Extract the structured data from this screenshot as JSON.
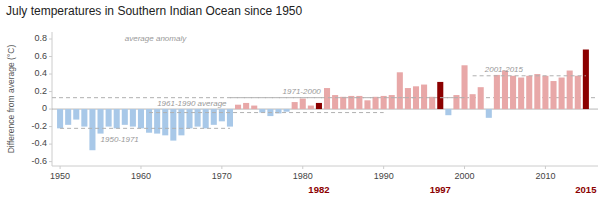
{
  "chart_data": {
    "type": "bar",
    "title": "July temperatures in Southern Indian Ocean since 1950",
    "ylabel": "Difference from average (°C)",
    "x": [
      1950,
      1951,
      1952,
      1953,
      1954,
      1955,
      1956,
      1957,
      1958,
      1959,
      1960,
      1961,
      1962,
      1963,
      1964,
      1965,
      1966,
      1967,
      1968,
      1969,
      1970,
      1971,
      1972,
      1973,
      1974,
      1975,
      1976,
      1977,
      1978,
      1979,
      1980,
      1981,
      1982,
      1983,
      1984,
      1985,
      1986,
      1987,
      1988,
      1989,
      1990,
      1991,
      1992,
      1993,
      1994,
      1995,
      1996,
      1997,
      1998,
      1999,
      2000,
      2001,
      2002,
      2003,
      2004,
      2005,
      2006,
      2007,
      2008,
      2009,
      2010,
      2011,
      2012,
      2013,
      2014,
      2015
    ],
    "values": [
      -0.22,
      -0.18,
      -0.12,
      -0.2,
      -0.47,
      -0.28,
      -0.2,
      -0.22,
      -0.18,
      -0.2,
      -0.22,
      -0.27,
      -0.28,
      -0.3,
      -0.36,
      -0.3,
      -0.22,
      -0.2,
      -0.22,
      -0.18,
      -0.14,
      -0.2,
      0.05,
      0.07,
      0.04,
      -0.04,
      -0.08,
      -0.05,
      -0.03,
      0.08,
      0.12,
      0.04,
      0.07,
      0.24,
      0.16,
      0.14,
      0.15,
      0.15,
      0.1,
      0.14,
      0.15,
      0.16,
      0.42,
      0.24,
      0.26,
      0.28,
      0.14,
      0.31,
      -0.07,
      0.16,
      0.5,
      0.17,
      0.25,
      -0.1,
      0.39,
      0.44,
      0.38,
      0.36,
      0.38,
      0.4,
      0.38,
      0.32,
      0.36,
      0.44,
      0.38,
      0.68
    ],
    "colors": [
      "#a8c8e8",
      "#a8c8e8",
      "#a8c8e8",
      "#a8c8e8",
      "#a8c8e8",
      "#a8c8e8",
      "#a8c8e8",
      "#a8c8e8",
      "#a8c8e8",
      "#a8c8e8",
      "#a8c8e8",
      "#a8c8e8",
      "#a8c8e8",
      "#a8c8e8",
      "#a8c8e8",
      "#a8c8e8",
      "#a8c8e8",
      "#a8c8e8",
      "#a8c8e8",
      "#a8c8e8",
      "#a8c8e8",
      "#a8c8e8",
      "#e8a8a8",
      "#e8a8a8",
      "#e8a8a8",
      "#a8c8e8",
      "#a8c8e8",
      "#a8c8e8",
      "#a8c8e8",
      "#e8a8a8",
      "#e8a8a8",
      "#e8a8a8",
      "#8b0000",
      "#e8a8a8",
      "#e8a8a8",
      "#e8a8a8",
      "#e8a8a8",
      "#e8a8a8",
      "#e8a8a8",
      "#e8a8a8",
      "#e8a8a8",
      "#e8a8a8",
      "#e8a8a8",
      "#e8a8a8",
      "#e8a8a8",
      "#e8a8a8",
      "#e8a8a8",
      "#8b0000",
      "#a8c8e8",
      "#e8a8a8",
      "#e8a8a8",
      "#e8a8a8",
      "#e8a8a8",
      "#a8c8e8",
      "#e8a8a8",
      "#e8a8a8",
      "#e8a8a8",
      "#e8a8a8",
      "#e8a8a8",
      "#e8a8a8",
      "#e8a8a8",
      "#e8a8a8",
      "#e8a8a8",
      "#e8a8a8",
      "#e8a8a8",
      "#8b0000"
    ],
    "highlight_x": [
      1982,
      1997,
      2015
    ],
    "reference_lines": [
      {
        "y": 0.13
      },
      {
        "x": [
          1950,
          1971
        ],
        "y": -0.22
      },
      {
        "x": [
          1961,
          1990
        ],
        "y": -0.04
      },
      {
        "x": [
          1971,
          2000
        ],
        "y": 0.13
      },
      {
        "x": [
          2001,
          2015
        ],
        "y": 0.38
      }
    ],
    "annotations": [
      {
        "text": "1950-1971",
        "x": 1955,
        "y": -0.29
      },
      {
        "text": "1961-1990 average",
        "x": 1962,
        "y": 0.01
      },
      {
        "text": "1971-2000",
        "x": 1977.5,
        "y": 0.15
      },
      {
        "text": "2001-2015",
        "x": 2002.5,
        "y": 0.4
      },
      {
        "text": "average anomaly",
        "x": 1958,
        "y": 0.75
      }
    ],
    "xlim": [
      1949.0,
      2016.5
    ],
    "ylim": [
      -0.65,
      0.88
    ],
    "xticks": [
      1950,
      1960,
      1970,
      1980,
      1990,
      2000,
      2010
    ],
    "yticks": [
      -0.6,
      -0.4,
      -0.2,
      0,
      0.2,
      0.4,
      0.6,
      0.8
    ],
    "grid": false
  }
}
